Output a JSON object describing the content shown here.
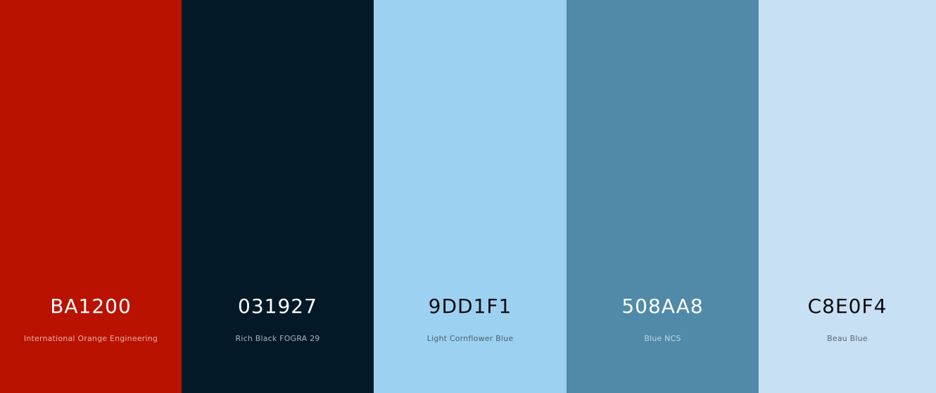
{
  "palette": {
    "colors": [
      {
        "hex": "BA1200",
        "name": "International Orange Engineering",
        "color": "#BA1200"
      },
      {
        "hex": "031927",
        "name": "Rich Black FOGRA 29",
        "color": "#031927"
      },
      {
        "hex": "9DD1F1",
        "name": "Light Cornflower Blue",
        "color": "#9DD1F1"
      },
      {
        "hex": "508AA8",
        "name": "Blue NCS",
        "color": "#508AA8"
      },
      {
        "hex": "C8E0F4",
        "name": "Beau Blue",
        "color": "#C8E0F4"
      }
    ]
  }
}
